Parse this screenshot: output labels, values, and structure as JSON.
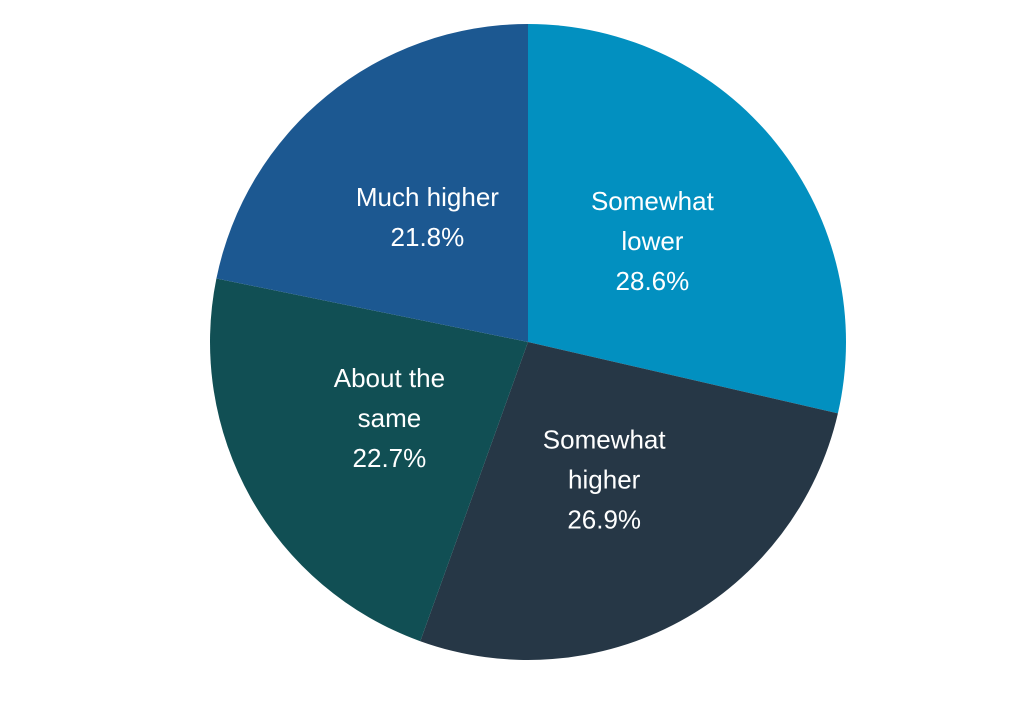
{
  "chart_data": {
    "type": "pie",
    "title": "",
    "start_angle_deg": 0,
    "direction": "clockwise",
    "slices": [
      {
        "label": "Somewhat lower",
        "label_lines": [
          "Somewhat",
          "lower"
        ],
        "value": 28.6,
        "display": "28.6%",
        "color": "#0290c0"
      },
      {
        "label": "Somewhat higher",
        "label_lines": [
          "Somewhat",
          "higher"
        ],
        "value": 26.9,
        "display": "26.9%",
        "color": "#263746"
      },
      {
        "label": "About the same",
        "label_lines": [
          "About the",
          "same"
        ],
        "value": 22.7,
        "display": "22.7%",
        "color": "#114f54"
      },
      {
        "label": "Much higher",
        "label_lines": [
          "Much higher"
        ],
        "value": 21.8,
        "display": "21.8%",
        "color": "#1c5891"
      }
    ]
  }
}
